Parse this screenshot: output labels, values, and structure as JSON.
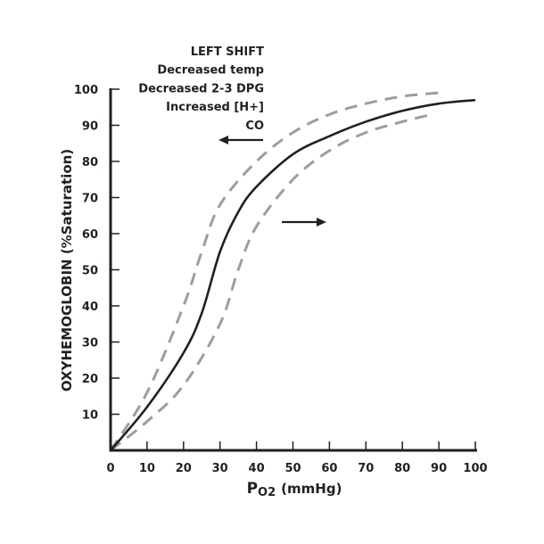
{
  "chart_data": {
    "type": "line",
    "title": "",
    "xlabel_main": "P",
    "xlabel_sub": "O2",
    "xlabel_unit": "(mmHg)",
    "ylabel": "OXYHEMOGLOBIN (%Saturation)",
    "xlim": [
      0,
      100
    ],
    "ylim": [
      0,
      100
    ],
    "x_ticks": [
      "0",
      "10",
      "20",
      "30",
      "40",
      "50",
      "60",
      "70",
      "80",
      "90",
      "100"
    ],
    "y_ticks": [
      "10",
      "20",
      "30",
      "40",
      "50",
      "60",
      "70",
      "80",
      "90",
      "100"
    ],
    "grid": false,
    "annotation_lines": [
      "LEFT SHIFT",
      "Decreased temp",
      "Decreased 2-3 DPG",
      "Increased [H+]",
      "CO"
    ],
    "series": [
      {
        "style": "solid",
        "color": "#231f20",
        "x": [
          0,
          10,
          20,
          25,
          30,
          35,
          40,
          50,
          60,
          70,
          80,
          90,
          100
        ],
        "y": [
          0,
          12,
          27,
          38,
          55,
          66,
          73,
          82,
          87,
          91,
          94,
          96,
          97
        ]
      },
      {
        "style": "dashed",
        "color": "#9d9d9d",
        "x": [
          0,
          10,
          20,
          25,
          30,
          40,
          50,
          60,
          70,
          80,
          90
        ],
        "y": [
          0,
          16,
          40,
          55,
          68,
          80,
          88,
          93,
          96,
          98,
          99
        ]
      },
      {
        "style": "dashed",
        "color": "#9d9d9d",
        "x": [
          0,
          10,
          20,
          30,
          35,
          40,
          50,
          60,
          70,
          80,
          88
        ],
        "y": [
          0,
          8,
          18,
          35,
          50,
          62,
          75,
          83,
          88,
          91,
          93
        ]
      }
    ],
    "arrows": [
      {
        "direction": "left",
        "meaning": "left shift"
      },
      {
        "direction": "right",
        "meaning": "right shift"
      }
    ]
  }
}
